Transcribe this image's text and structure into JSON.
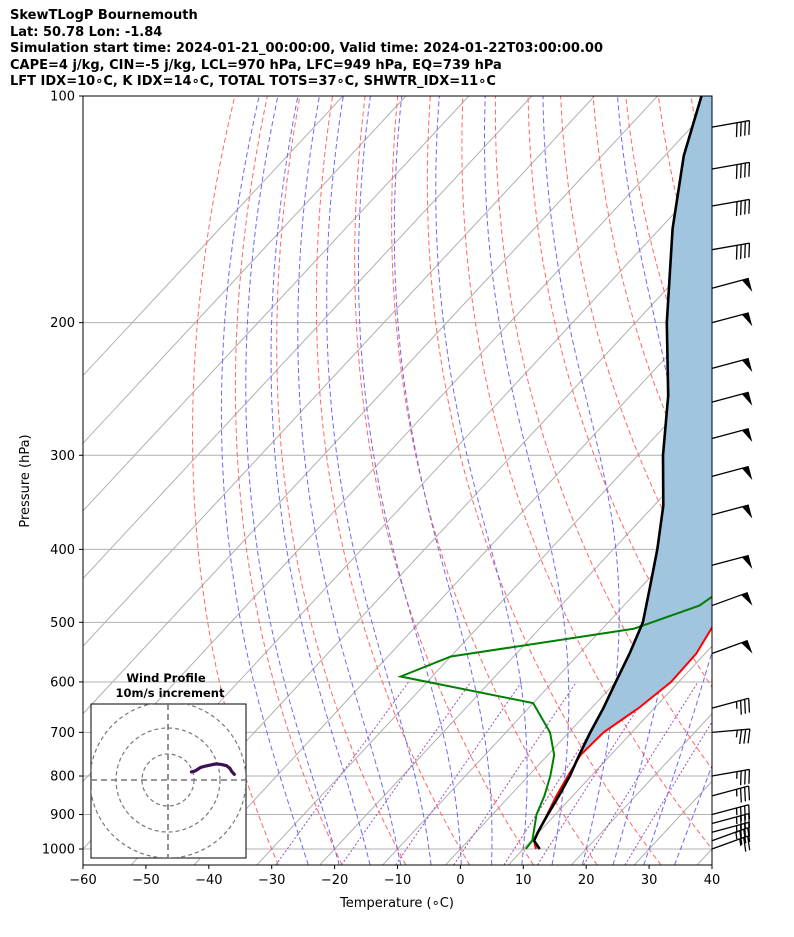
{
  "header": {
    "title": "SkewTLogP Bournemouth",
    "location": "Lat: 50.78   Lon: -1.84",
    "times": "Simulation start time: 2024-01-21_00:00:00, Valid time: 2024-01-22T03:00:00.00",
    "indices1": "CAPE=4 j/kg, CIN=-5 j/kg, LCL=970 hPa, LFC=949 hPa, EQ=739 hPa",
    "indices2": "LFT IDX=10∘C, K IDX=14∘C, TOTAL TOTS=37∘C, SHWTR_IDX=11∘C"
  },
  "chart_data": {
    "type": "line",
    "skew_t_log_p": true,
    "xlabel": "Temperature (∘C)",
    "ylabel": "Pressure (hPa)",
    "xlim": [
      -60,
      40
    ],
    "ylim_hpa": [
      1050,
      100
    ],
    "x_ticks": [
      "−60",
      "−50",
      "−40",
      "−30",
      "−20",
      "−10",
      "0",
      "10",
      "20",
      "30",
      "40"
    ],
    "x_tick_values": [
      -60,
      -50,
      -40,
      -30,
      -20,
      -10,
      0,
      10,
      20,
      30,
      40
    ],
    "y_ticks": [
      "1000",
      "900",
      "800",
      "700",
      "600",
      "500",
      "400",
      "300",
      "200",
      "100"
    ],
    "y_tick_values": [
      1000,
      900,
      800,
      700,
      600,
      500,
      400,
      300,
      200,
      100
    ],
    "grid": true,
    "colors": {
      "temperature": "#ff0000",
      "dewpoint": "#008000",
      "parcel": "#000000",
      "shade": "#a1c4df",
      "dry_adiabats": "#ff6666",
      "moist_adiabats": "#6a6af2",
      "mixing_ratio": "#9a4fbe",
      "isotherms": "#b0b0b0",
      "hodograph": "#3f0f55"
    },
    "series": [
      {
        "role": "temperature",
        "points": [
          [
            12,
            1000
          ],
          [
            10.5,
            975
          ],
          [
            8.7,
            900
          ],
          [
            7.4,
            850
          ],
          [
            6.3,
            800
          ],
          [
            5.2,
            750
          ],
          [
            5.5,
            700
          ],
          [
            7.5,
            650
          ],
          [
            8.8,
            600
          ],
          [
            8.6,
            550
          ],
          [
            7,
            500
          ],
          [
            4.4,
            475
          ],
          [
            1.5,
            440
          ],
          [
            -0.5,
            410
          ],
          [
            -2.5,
            370
          ],
          [
            -5,
            330
          ],
          [
            -7,
            300
          ],
          [
            -9.5,
            270
          ],
          [
            -11.5,
            245
          ],
          [
            -13.5,
            220
          ],
          [
            -14.2,
            200
          ],
          [
            -13,
            185
          ],
          [
            -9,
            165
          ],
          [
            -3,
            145
          ],
          [
            2,
            130
          ],
          [
            7,
            115
          ],
          [
            10,
            100
          ]
        ]
      },
      {
        "role": "dewpoint",
        "points": [
          [
            10.4,
            1000
          ],
          [
            10.2,
            975
          ],
          [
            7,
            900
          ],
          [
            5.5,
            850
          ],
          [
            3.5,
            800
          ],
          [
            1,
            750
          ],
          [
            -3,
            700
          ],
          [
            -10,
            640
          ],
          [
            -35,
            590
          ],
          [
            -30,
            555
          ],
          [
            -5,
            510
          ],
          [
            2,
            475
          ],
          [
            4,
            440
          ],
          [
            3,
            405
          ],
          [
            0,
            380
          ],
          [
            -2.8,
            350
          ],
          [
            -2.5,
            320
          ],
          [
            -5,
            295
          ],
          [
            -7,
            275
          ],
          [
            -9,
            250
          ],
          [
            -10.5,
            225
          ],
          [
            -11,
            205
          ],
          [
            -9.5,
            185
          ],
          [
            -8,
            170
          ],
          [
            -8,
            158
          ],
          [
            -7.5,
            150
          ],
          [
            -1,
            135
          ],
          [
            5,
            115
          ],
          [
            8,
            100
          ]
        ]
      },
      {
        "role": "parcel",
        "points": [
          [
            12.6,
            1000
          ],
          [
            10.5,
            975
          ],
          [
            9.8,
            949
          ],
          [
            8.8,
            900
          ],
          [
            7.8,
            850
          ],
          [
            6.6,
            800
          ],
          [
            5,
            750
          ],
          [
            3.4,
            700
          ],
          [
            1.9,
            650
          ],
          [
            0,
            600
          ],
          [
            -2,
            550
          ],
          [
            -4.5,
            500
          ],
          [
            -8.5,
            450
          ],
          [
            -13,
            400
          ],
          [
            -18.5,
            350
          ],
          [
            -26,
            300
          ],
          [
            -34,
            250
          ],
          [
            -45,
            200
          ],
          [
            -58,
            150
          ],
          [
            -67,
            120
          ],
          [
            -73,
            100
          ]
        ]
      }
    ],
    "wind_barbs": [
      {
        "p": 1000,
        "dir": 250,
        "spd": 25
      },
      {
        "p": 975,
        "dir": 250,
        "spd": 35
      },
      {
        "p": 950,
        "dir": 255,
        "spd": 35
      },
      {
        "p": 925,
        "dir": 255,
        "spd": 35
      },
      {
        "p": 900,
        "dir": 255,
        "spd": 35
      },
      {
        "p": 850,
        "dir": 255,
        "spd": 35
      },
      {
        "p": 800,
        "dir": 260,
        "spd": 35
      },
      {
        "p": 700,
        "dir": 265,
        "spd": 35
      },
      {
        "p": 650,
        "dir": 255,
        "spd": 35
      },
      {
        "p": 550,
        "dir": 250,
        "spd": 50
      },
      {
        "p": 475,
        "dir": 250,
        "spd": 50
      },
      {
        "p": 420,
        "dir": 255,
        "spd": 50
      },
      {
        "p": 360,
        "dir": 255,
        "spd": 50
      },
      {
        "p": 320,
        "dir": 255,
        "spd": 50
      },
      {
        "p": 285,
        "dir": 255,
        "spd": 50
      },
      {
        "p": 255,
        "dir": 255,
        "spd": 50
      },
      {
        "p": 230,
        "dir": 255,
        "spd": 50
      },
      {
        "p": 200,
        "dir": 255,
        "spd": 50
      },
      {
        "p": 180,
        "dir": 255,
        "spd": 50
      },
      {
        "p": 160,
        "dir": 260,
        "spd": 40
      },
      {
        "p": 140,
        "dir": 260,
        "spd": 40
      },
      {
        "p": 125,
        "dir": 260,
        "spd": 40
      },
      {
        "p": 110,
        "dir": 260,
        "spd": 40
      }
    ],
    "inset": {
      "title": "Wind Profile",
      "subtitle": "10m/s increment",
      "hodograph_uv_ms": [
        [
          9,
          3.1
        ],
        [
          10.5,
          3.5
        ],
        [
          12.5,
          4.8
        ],
        [
          14.5,
          5.4
        ],
        [
          16.5,
          5.8
        ],
        [
          18.5,
          6.2
        ],
        [
          20.5,
          6
        ],
        [
          22.5,
          5.5
        ],
        [
          23.8,
          4.5
        ],
        [
          24.5,
          3.3
        ],
        [
          25.5,
          2.2
        ]
      ],
      "range_ring_ms": [
        10,
        20,
        30
      ]
    }
  }
}
